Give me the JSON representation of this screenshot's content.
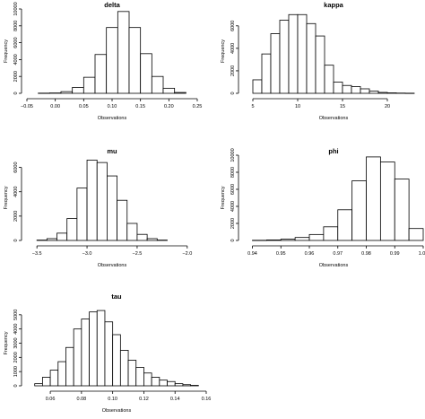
{
  "chart_data": [
    {
      "type": "bar",
      "title": "delta",
      "xlabel": "Observations",
      "ylabel": "Frequency",
      "xlim": [
        -0.05,
        0.25
      ],
      "ylim": [
        0,
        10000
      ],
      "xticks": [
        -0.05,
        0.0,
        0.05,
        0.1,
        0.15,
        0.2,
        0.25
      ],
      "xtick_labels": [
        "−0.05",
        "0.00",
        "0.05",
        "0.10",
        "0.15",
        "0.20",
        "0.25"
      ],
      "yticks": [
        0,
        2000,
        4000,
        6000,
        8000,
        10000
      ],
      "ytick_labels": [
        "0",
        "2000",
        "4000",
        "6000",
        "8000",
        "10000"
      ],
      "bin_edges": [
        -0.03,
        -0.01,
        0.01,
        0.03,
        0.05,
        0.07,
        0.09,
        0.11,
        0.13,
        0.15,
        0.17,
        0.19,
        0.21,
        0.23
      ],
      "values": [
        20,
        40,
        200,
        700,
        1900,
        4600,
        7800,
        9700,
        7800,
        4700,
        2000,
        600,
        100
      ]
    },
    {
      "type": "bar",
      "title": "kappa",
      "xlabel": "Observations",
      "ylabel": "Frequency",
      "xlim": [
        4,
        24
      ],
      "ylim": [
        0,
        7500
      ],
      "xticks": [
        5,
        10,
        15,
        20
      ],
      "xtick_labels": [
        "5",
        "10",
        "15",
        "20"
      ],
      "yticks": [
        0,
        2000,
        4000,
        6000
      ],
      "ytick_labels": [
        "0",
        "2000",
        "4000",
        "6000"
      ],
      "bin_edges": [
        5,
        6,
        7,
        8,
        9,
        10,
        11,
        12,
        13,
        14,
        15,
        16,
        17,
        18,
        19,
        20,
        21,
        22,
        23
      ],
      "values": [
        1200,
        3500,
        5300,
        6500,
        7000,
        7000,
        6200,
        5100,
        2500,
        1000,
        700,
        600,
        400,
        200,
        80,
        40,
        20,
        10
      ]
    },
    {
      "type": "bar",
      "title": "mu",
      "xlabel": "Observations",
      "ylabel": "Frequency",
      "xlim": [
        -3.6,
        -1.9
      ],
      "ylim": [
        0,
        7000
      ],
      "xticks": [
        -3.5,
        -3.0,
        -2.5,
        -2.0
      ],
      "xtick_labels": [
        "−3.5",
        "−3.0",
        "−2.5",
        "−2.0"
      ],
      "yticks": [
        0,
        2000,
        4000,
        6000
      ],
      "ytick_labels": [
        "0",
        "2000",
        "4000",
        "6000"
      ],
      "bin_edges": [
        -3.5,
        -3.4,
        -3.3,
        -3.2,
        -3.1,
        -3.0,
        -2.9,
        -2.8,
        -2.7,
        -2.6,
        -2.5,
        -2.4,
        -2.3,
        -2.2
      ],
      "values": [
        30,
        150,
        600,
        1800,
        4300,
        6600,
        6400,
        5300,
        3300,
        1400,
        500,
        150,
        30
      ]
    },
    {
      "type": "bar",
      "title": "phi",
      "xlabel": "Observations",
      "ylabel": "Frequency",
      "xlim": [
        0.937,
        1.0
      ],
      "ylim": [
        0,
        10000
      ],
      "xticks": [
        0.94,
        0.95,
        0.96,
        0.97,
        0.98,
        0.99,
        1.0
      ],
      "xtick_labels": [
        "0.94",
        "0.95",
        "0.96",
        "0.97",
        "0.98",
        "0.99",
        "1.00"
      ],
      "yticks": [
        0,
        2000,
        4000,
        6000,
        8000,
        10000
      ],
      "ytick_labels": [
        "0",
        "2000",
        "4000",
        "6000",
        "8000",
        "10000"
      ],
      "bin_edges": [
        0.94,
        0.945,
        0.95,
        0.955,
        0.96,
        0.965,
        0.97,
        0.975,
        0.98,
        0.985,
        0.99,
        0.995,
        1.0
      ],
      "values": [
        20,
        60,
        150,
        350,
        700,
        1600,
        3600,
        7000,
        9800,
        9200,
        7200,
        1400
      ]
    },
    {
      "type": "bar",
      "title": "tau",
      "xlabel": "Observations",
      "ylabel": "Frequency",
      "xlim": [
        0.045,
        0.16
      ],
      "ylim": [
        0,
        6000
      ],
      "xticks": [
        0.06,
        0.08,
        0.1,
        0.12,
        0.14,
        0.16
      ],
      "xtick_labels": [
        "0.06",
        "0.08",
        "0.10",
        "0.12",
        "0.14",
        "0.16"
      ],
      "yticks": [
        0,
        1000,
        2000,
        3000,
        4000,
        5000
      ],
      "ytick_labels": [
        "0",
        "1000",
        "2000",
        "3000",
        "4000",
        "5000"
      ],
      "bin_edges": [
        0.05,
        0.055,
        0.06,
        0.065,
        0.07,
        0.075,
        0.08,
        0.085,
        0.09,
        0.095,
        0.1,
        0.105,
        0.11,
        0.115,
        0.12,
        0.125,
        0.13,
        0.135,
        0.14,
        0.145,
        0.15,
        0.155
      ],
      "values": [
        150,
        600,
        1100,
        1700,
        2700,
        4000,
        4700,
        5200,
        5300,
        4500,
        3600,
        2500,
        1800,
        1300,
        900,
        600,
        400,
        300,
        150,
        80,
        30
      ]
    }
  ]
}
